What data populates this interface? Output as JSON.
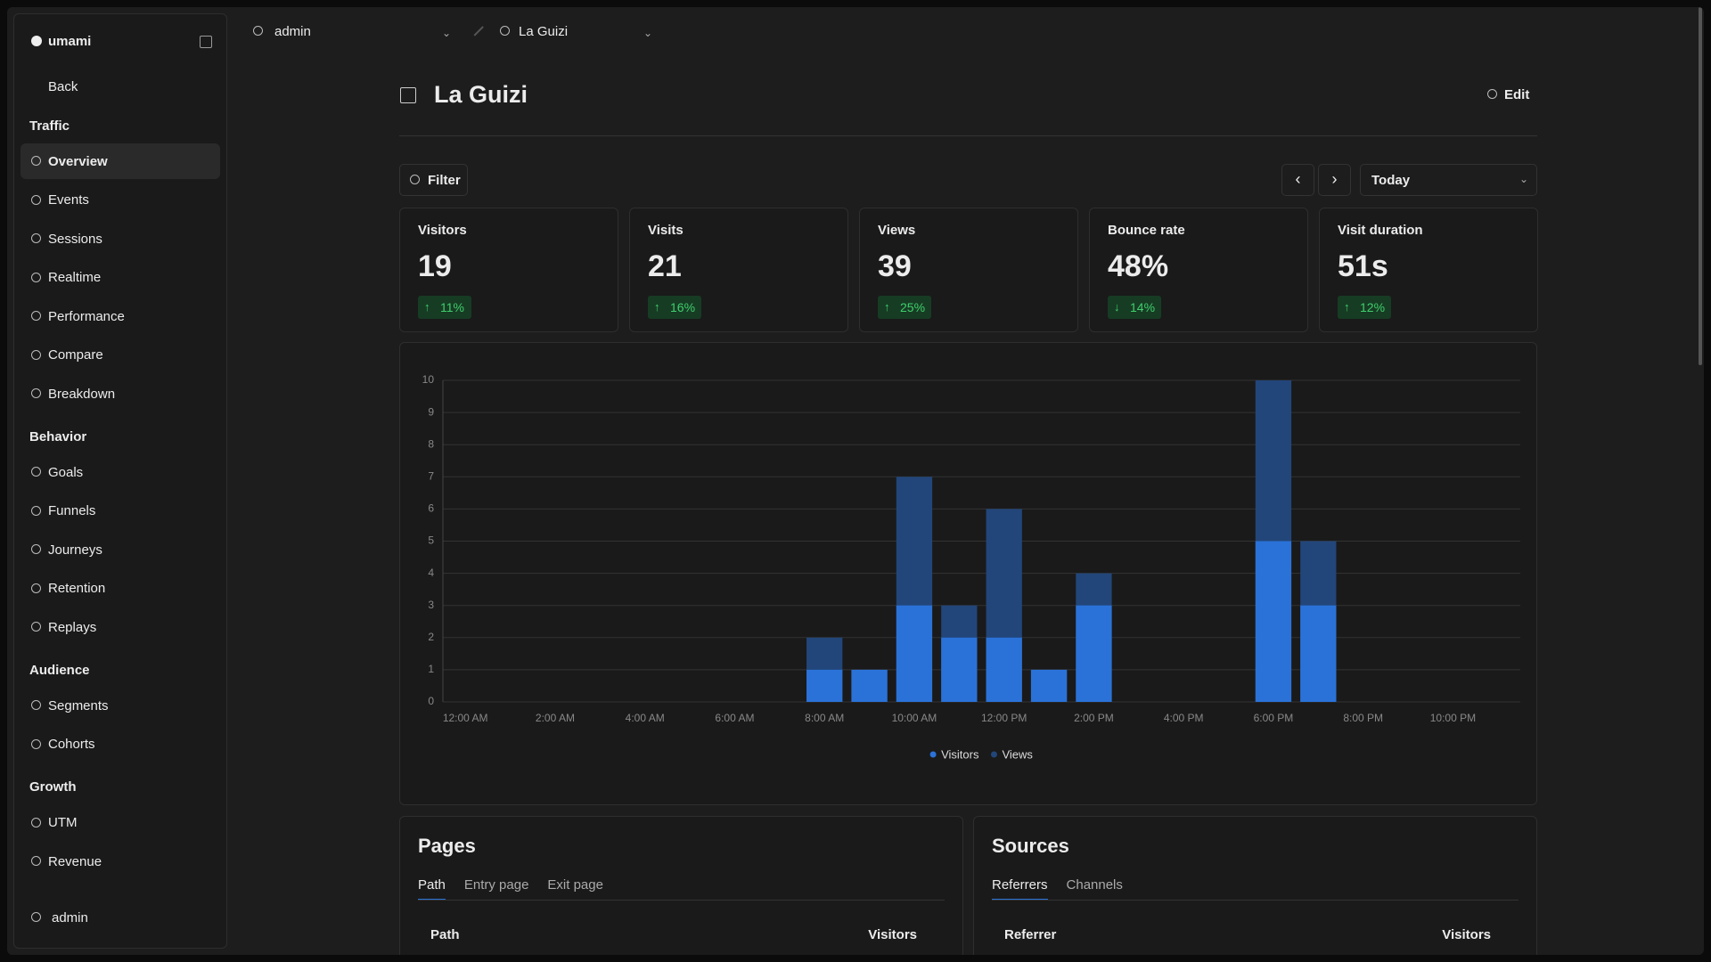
{
  "sidebar": {
    "brand": "umami",
    "back": "Back",
    "sections": [
      {
        "title": "Traffic",
        "items": [
          {
            "label": "Overview",
            "active": true
          },
          {
            "label": "Events"
          },
          {
            "label": "Sessions"
          },
          {
            "label": "Realtime"
          },
          {
            "label": "Performance"
          },
          {
            "label": "Compare"
          },
          {
            "label": "Breakdown"
          }
        ]
      },
      {
        "title": "Behavior",
        "items": [
          {
            "label": "Goals"
          },
          {
            "label": "Funnels"
          },
          {
            "label": "Journeys"
          },
          {
            "label": "Retention"
          },
          {
            "label": "Replays"
          }
        ]
      },
      {
        "title": "Audience",
        "items": [
          {
            "label": "Segments"
          },
          {
            "label": "Cohorts"
          }
        ]
      },
      {
        "title": "Growth",
        "items": [
          {
            "label": "UTM"
          },
          {
            "label": "Revenue"
          }
        ]
      }
    ],
    "user": "admin"
  },
  "topbar": {
    "team": "admin",
    "website": "La Guizi"
  },
  "header": {
    "title": "La Guizi",
    "edit": "Edit"
  },
  "toolbar": {
    "filter": "Filter",
    "range": "Today"
  },
  "metrics": [
    {
      "label": "Visitors",
      "value": "19",
      "change": "11%",
      "direction": "up"
    },
    {
      "label": "Visits",
      "value": "21",
      "change": "16%",
      "direction": "up"
    },
    {
      "label": "Views",
      "value": "39",
      "change": "25%",
      "direction": "up"
    },
    {
      "label": "Bounce rate",
      "value": "48%",
      "change": "14%",
      "direction": "down"
    },
    {
      "label": "Visit duration",
      "value": "51s",
      "change": "12%",
      "direction": "up"
    }
  ],
  "chart_data": {
    "type": "bar",
    "categories": [
      "12:00 AM",
      null,
      "2:00 AM",
      null,
      "4:00 AM",
      null,
      "6:00 AM",
      null,
      "8:00 AM",
      null,
      "10:00 AM",
      null,
      "12:00 PM",
      null,
      "2:00 PM",
      null,
      "4:00 PM",
      null,
      "6:00 PM",
      null,
      "8:00 PM",
      null,
      "10:00 PM",
      null
    ],
    "series": [
      {
        "name": "Visitors",
        "color": "#2a72d8",
        "values": [
          0,
          0,
          0,
          0,
          0,
          0,
          0,
          0,
          1,
          1,
          3,
          2,
          2,
          1,
          3,
          0,
          0,
          0,
          5,
          3,
          0,
          0,
          0,
          0
        ]
      },
      {
        "name": "Views",
        "color": "#22467a",
        "values": [
          0,
          0,
          0,
          0,
          0,
          0,
          0,
          0,
          2,
          1,
          7,
          3,
          6,
          1,
          4,
          0,
          0,
          0,
          10,
          5,
          0,
          0,
          0,
          0
        ]
      }
    ],
    "ylim": [
      0,
      10
    ],
    "yticks": [
      0,
      1,
      2,
      3,
      4,
      5,
      6,
      7,
      8,
      9,
      10
    ],
    "grid": true,
    "legend": "bottom"
  },
  "pages": {
    "title": "Pages",
    "tabs": [
      {
        "label": "Path",
        "active": true
      },
      {
        "label": "Entry page"
      },
      {
        "label": "Exit page"
      }
    ],
    "columns": [
      "Path",
      "Visitors"
    ]
  },
  "sources": {
    "title": "Sources",
    "tabs": [
      {
        "label": "Referrers",
        "active": true
      },
      {
        "label": "Channels"
      }
    ],
    "columns": [
      "Referrer",
      "Visitors"
    ]
  }
}
